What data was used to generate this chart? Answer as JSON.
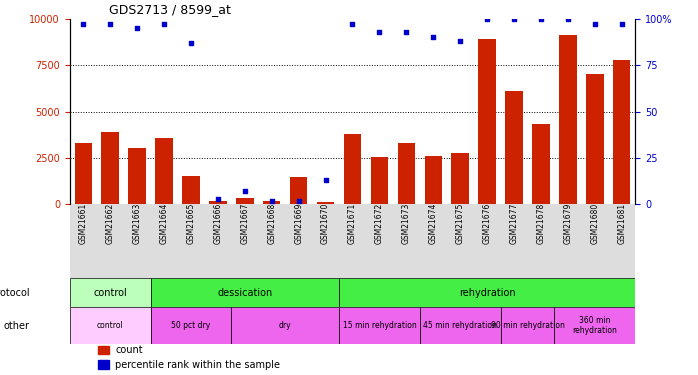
{
  "title": "GDS2713 / 8599_at",
  "samples": [
    "GSM21661",
    "GSM21662",
    "GSM21663",
    "GSM21664",
    "GSM21665",
    "GSM21666",
    "GSM21667",
    "GSM21668",
    "GSM21669",
    "GSM21670",
    "GSM21671",
    "GSM21672",
    "GSM21673",
    "GSM21674",
    "GSM21675",
    "GSM21676",
    "GSM21677",
    "GSM21678",
    "GSM21679",
    "GSM21680",
    "GSM21681"
  ],
  "count_values": [
    3300,
    3900,
    3050,
    3550,
    1550,
    150,
    350,
    200,
    1450,
    100,
    3800,
    2550,
    3300,
    2600,
    2750,
    8900,
    6100,
    4350,
    9100,
    7000,
    7800
  ],
  "percentile_values": [
    97,
    97,
    95,
    97,
    87,
    3,
    7,
    2,
    2,
    13,
    97,
    93,
    93,
    90,
    88,
    100,
    100,
    100,
    100,
    97,
    97
  ],
  "left_ylim": [
    0,
    10000
  ],
  "right_ylim": [
    0,
    100
  ],
  "left_yticks": [
    0,
    2500,
    5000,
    7500,
    10000
  ],
  "right_yticks": [
    0,
    25,
    50,
    75,
    100
  ],
  "bar_color": "#cc2200",
  "dot_color": "#0000cc",
  "protocol_row": {
    "label": "protocol",
    "segments": [
      {
        "text": "control",
        "start": 0,
        "end": 3,
        "color": "#bbffbb"
      },
      {
        "text": "dessication",
        "start": 3,
        "end": 10,
        "color": "#44ee44"
      },
      {
        "text": "rehydration",
        "start": 10,
        "end": 21,
        "color": "#44ee44"
      }
    ]
  },
  "other_row": {
    "label": "other",
    "segments": [
      {
        "text": "control",
        "start": 0,
        "end": 3,
        "color": "#ffccff"
      },
      {
        "text": "50 pct dry",
        "start": 3,
        "end": 6,
        "color": "#ee66ee"
      },
      {
        "text": "dry",
        "start": 6,
        "end": 10,
        "color": "#ee66ee"
      },
      {
        "text": "15 min rehydration",
        "start": 10,
        "end": 13,
        "color": "#ee66ee"
      },
      {
        "text": "45 min rehydration",
        "start": 13,
        "end": 16,
        "color": "#ee66ee"
      },
      {
        "text": "90 min rehydration",
        "start": 16,
        "end": 18,
        "color": "#ee66ee"
      },
      {
        "text": "360 min\nrehydration",
        "start": 18,
        "end": 21,
        "color": "#ee66ee"
      }
    ]
  },
  "legend_items": [
    {
      "color": "#cc2200",
      "label": "count"
    },
    {
      "color": "#0000cc",
      "label": "percentile rank within the sample"
    }
  ],
  "xtick_bg_color": "#dddddd",
  "fig_bg_color": "#ffffff"
}
